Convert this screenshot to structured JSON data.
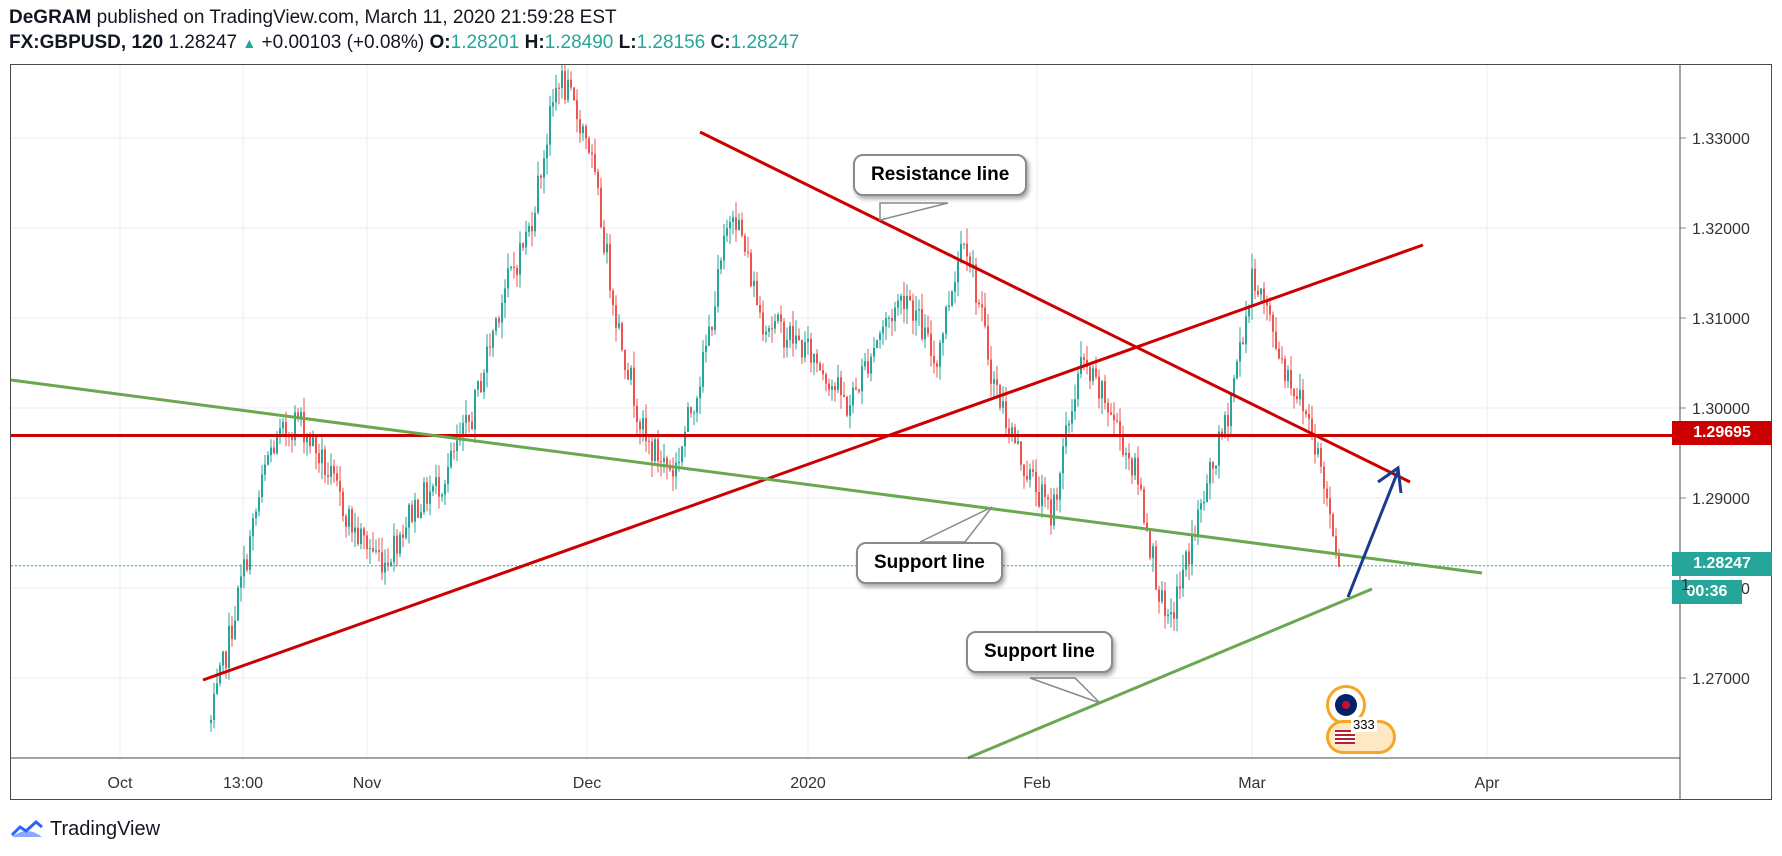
{
  "header": {
    "author": "DeGRAM",
    "published_text": "published on TradingView.com, March 11, 2020 21:59:28 EST",
    "symbol": "FX:GBPUSD, 120",
    "last": "1.28247",
    "change": "+0.00103 (+0.08%)",
    "o_label": "O:",
    "o_value": "1.28201",
    "h_label": "H:",
    "h_value": "1.28490",
    "l_label": "L:",
    "l_value": "1.28156",
    "c_label": "C:",
    "c_value": "1.28247"
  },
  "price_labels": {
    "horizontal_level": "1.29695",
    "current_price": "1.28247",
    "countdown": "00:36",
    "truncated_tick": "1."
  },
  "annotations": {
    "resistance": "Resistance line",
    "support_mid": "Support line",
    "support_low": "Support line",
    "event_count": "333"
  },
  "footer": {
    "brand": "TradingView"
  },
  "colors": {
    "up": "#26a69a",
    "down": "#ef5350",
    "red_line": "#cc0000",
    "green_line": "#6aa84f",
    "blue_arrow": "#1a3c8c",
    "grid": "#e8eef3"
  },
  "chart_data": {
    "type": "candlestick",
    "ylim": [
      1.2605,
      1.3375
    ],
    "y_ticks": [
      "1.27000",
      "1.28000",
      "1.29000",
      "1.30000",
      "1.31000",
      "1.32000",
      "1.33000"
    ],
    "x_ticks": [
      "Oct",
      "13:00",
      "Nov",
      "Dec",
      "2020",
      "Feb",
      "Mar",
      "Apr"
    ],
    "close_path": [
      [
        "13:00",
        1.265
      ],
      [
        "13:00",
        1.28
      ],
      [
        "13:00",
        1.295
      ],
      [
        "13:00",
        1.299
      ],
      [
        "Nov",
        1.293
      ],
      [
        "Nov",
        1.286
      ],
      [
        "Nov",
        1.283
      ],
      [
        "Nov",
        1.289
      ],
      [
        "Dec",
        1.292
      ],
      [
        "Dec",
        1.299
      ],
      [
        "Dec",
        1.312
      ],
      [
        "Dec",
        1.32
      ],
      [
        "Dec",
        1.337
      ],
      [
        "Dec",
        1.33
      ],
      [
        "Dec",
        1.31
      ],
      [
        "Dec",
        1.296
      ],
      [
        "Dec",
        1.293
      ],
      [
        "2020",
        1.305
      ],
      [
        "2020",
        1.323
      ],
      [
        "2020",
        1.31
      ],
      [
        "2020",
        1.308
      ],
      [
        "2020",
        1.305
      ],
      [
        "2020",
        1.3
      ],
      [
        "2020",
        1.308
      ],
      [
        "2020",
        1.313
      ],
      [
        "2020",
        1.305
      ],
      [
        "Feb",
        1.32
      ],
      [
        "Feb",
        1.303
      ],
      [
        "Feb",
        1.294
      ],
      [
        "Feb",
        1.288
      ],
      [
        "Feb",
        1.305
      ],
      [
        "Feb",
        1.3
      ],
      [
        "Feb",
        1.292
      ],
      [
        "Mar",
        1.275
      ],
      [
        "Mar",
        1.287
      ],
      [
        "Mar",
        1.298
      ],
      [
        "Mar",
        1.315
      ],
      [
        "Mar",
        1.305
      ],
      [
        "Mar",
        1.298
      ],
      [
        "Mar",
        1.2825
      ]
    ],
    "horizontal_level": 1.29695,
    "current_price": 1.28247
  }
}
